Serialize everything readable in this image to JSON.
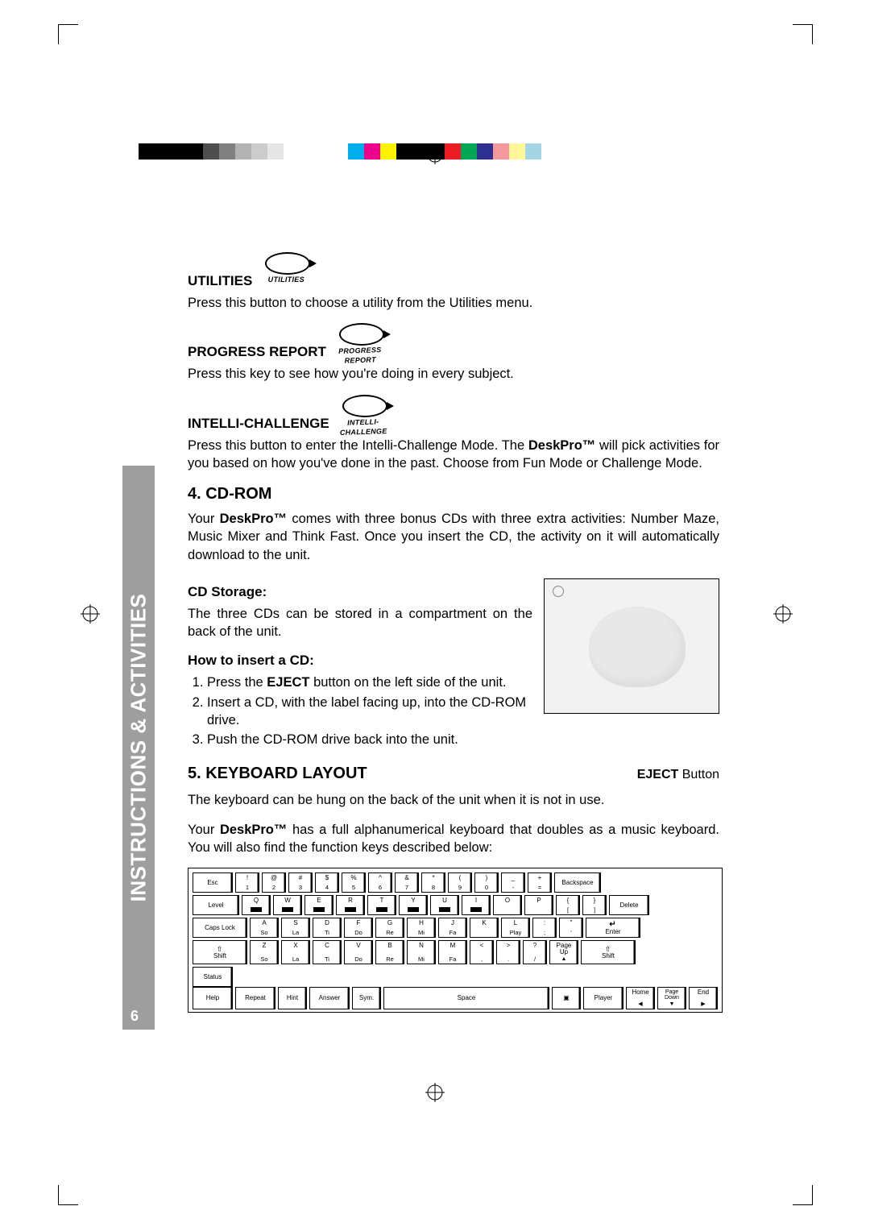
{
  "registration": {
    "colors": [
      "#000000",
      "#000000",
      "#000000",
      "#000000",
      "#4d4d4d",
      "#808080",
      "#b3b3b3",
      "#cccccc",
      "#e6e6e6",
      "#ffffff",
      "#ffffff",
      "#ffffff",
      "#ffffff",
      "#00aeef",
      "#ec008c",
      "#fff200",
      "#000000",
      "#000000",
      "#000000",
      "#ed1c24",
      "#00a651",
      "#2e3192",
      "#f5989d",
      "#fff799",
      "#a3d5e4"
    ]
  },
  "sidebar": {
    "title": "INSTRUCTIONS & ACTIVITIES",
    "page_number": "6"
  },
  "utilities": {
    "label": "UTILITIES",
    "icon_caption": "UTILITIES",
    "desc": "Press this button to choose a utility from the Utilities menu."
  },
  "progress": {
    "label": "PROGRESS REPORT",
    "icon_caption": "PROGRESS REPORT",
    "desc": "Press this key to see how you're doing in every subject."
  },
  "intelli": {
    "label": "INTELLI-CHALLENGE",
    "icon_caption": "INTELLI-CHALLENGE",
    "desc_pre": "Press this button to enter the Intelli-Challenge Mode. The ",
    "brand": "DeskPro™",
    "desc_post": " will pick activities for you based on how you've done in the past. Choose from Fun Mode or Challenge Mode."
  },
  "cdrom": {
    "heading": "4. CD-ROM",
    "intro_pre": "Your ",
    "brand": "DeskPro™",
    "intro_post": " comes with three bonus CDs with three extra activities: Number Maze, Music Mixer and Think Fast. Once you insert the CD, the activity on it will automatically download to the unit.",
    "storage_h": "CD Storage:",
    "storage_p": "The three CDs can be stored in a compartment on the back of the unit.",
    "insert_h": "How to insert a CD:",
    "step1_pre": "Press the ",
    "step1_bold": "EJECT",
    "step1_post": " button on the left side of the unit.",
    "step2": "Insert a CD, with the label facing up, into the CD-ROM drive.",
    "step3": "Push the CD-ROM drive back into the unit.",
    "eject_bold": "EJECT",
    "eject_post": " Button"
  },
  "kbd": {
    "heading": "5. KEYBOARD LAYOUT",
    "p1": "The keyboard can be hung on the back of the unit when it is not in use.",
    "p2_pre": "Your ",
    "brand": "DeskPro™",
    "p2_post": " has a full alphanumerical keyboard that doubles as a music keyboard. You will also find the function keys described below:",
    "row1": {
      "esc": "Esc",
      "nums": [
        [
          "!",
          "1"
        ],
        [
          "@",
          "2"
        ],
        [
          "#",
          "3"
        ],
        [
          "$",
          "4"
        ],
        [
          "%",
          "5"
        ],
        [
          "^",
          "6"
        ],
        [
          "&",
          "7"
        ],
        [
          "*",
          "8"
        ],
        [
          "(",
          "9"
        ],
        [
          ")",
          "0"
        ],
        [
          "_",
          "-"
        ],
        [
          "+",
          "="
        ]
      ],
      "back": "Backspace"
    },
    "row2": {
      "level": "Level",
      "letters": [
        [
          "Q",
          "CE"
        ],
        [
          "W",
          "C"
        ],
        [
          "E",
          "+/−"
        ],
        [
          "R",
          "×"
        ],
        [
          "T",
          "−"
        ],
        [
          "Y",
          "+"
        ],
        [
          "U",
          "="
        ],
        [
          "I",
          "÷"
        ],
        [
          "O",
          ""
        ],
        [
          "P",
          ""
        ]
      ],
      "br1": [
        "{",
        "["
      ],
      "br2": [
        "}",
        "]"
      ],
      "del": "Delete"
    },
    "row3": {
      "caps": "Caps Lock",
      "letters": [
        [
          "A",
          "So"
        ],
        [
          "S",
          "La"
        ],
        [
          "D",
          "Ti"
        ],
        [
          "F",
          "Do"
        ],
        [
          "G",
          "Re"
        ],
        [
          "H",
          "Mi"
        ],
        [
          "J",
          "Fa"
        ],
        [
          "K",
          ""
        ],
        [
          "L",
          "Play"
        ]
      ],
      "semi": [
        ":",
        ";"
      ],
      "quote": [
        "\"",
        "'"
      ],
      "enter": "Enter"
    },
    "row4": {
      "shift": "Shift",
      "letters": [
        [
          "Z",
          "So"
        ],
        [
          "X",
          "La"
        ],
        [
          "C",
          "Ti"
        ],
        [
          "V",
          "Do"
        ],
        [
          "B",
          "Re"
        ],
        [
          "N",
          "Mi"
        ],
        [
          "M",
          "Fa"
        ]
      ],
      "lt": [
        "<",
        ","
      ],
      "gt": [
        ">",
        "."
      ],
      "q": [
        "?",
        "/"
      ],
      "pgup": "Page\nUp"
    },
    "row5": {
      "status": "Status",
      "help": "Help",
      "repeat": "Repeat",
      "hint": "Hint",
      "answer": "Answer",
      "sym": "Sym.",
      "space": "Space",
      "player": "Player",
      "home": "Home",
      "pgdn": "Page\nDown",
      "end": "End"
    }
  }
}
